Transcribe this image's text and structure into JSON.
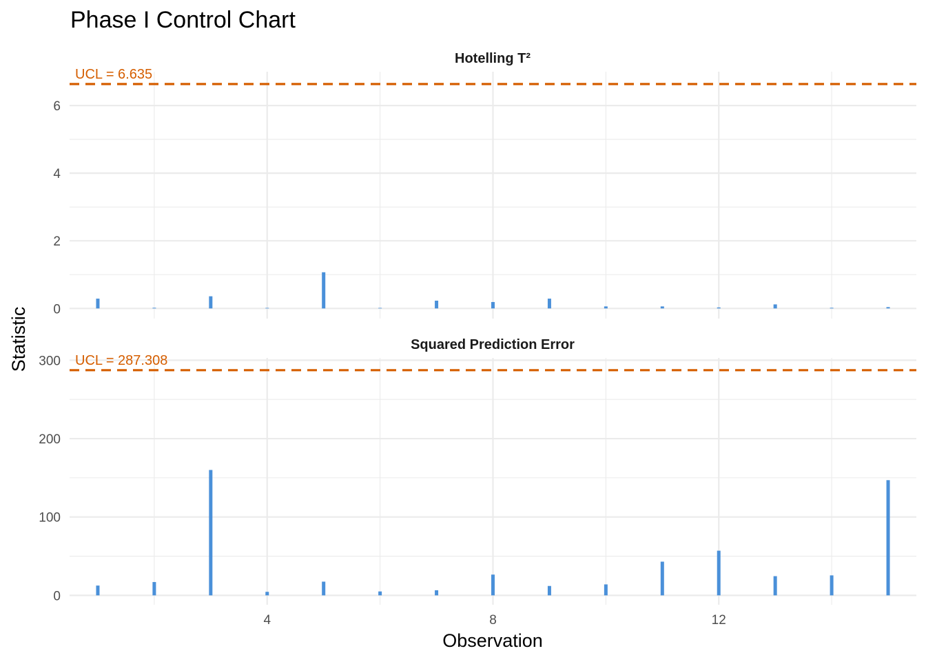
{
  "chart_data": {
    "type": "bar",
    "title": "Phase I Control Chart",
    "xlabel": "Observation",
    "ylabel": "Statistic",
    "x": [
      1,
      2,
      3,
      4,
      5,
      6,
      7,
      8,
      9,
      10,
      11,
      12,
      13,
      14,
      15
    ],
    "xlim": [
      0.5,
      15.5
    ],
    "x_ticks": [
      4,
      8,
      12
    ],
    "x_tick_labels": [
      "4",
      "8",
      "12"
    ],
    "grid": true,
    "colors": {
      "bar": "#4a90d9",
      "ucl": "#d55e00",
      "grid": "#ebebeb"
    },
    "panels": [
      {
        "name": "Hotelling T²",
        "values": [
          0.29,
          0.02,
          0.36,
          0.0,
          1.07,
          0.0,
          0.23,
          0.19,
          0.29,
          0.06,
          0.06,
          0.03,
          0.12,
          0.02,
          0.04
        ],
        "ylim": [
          -0.3,
          7.0
        ],
        "y_ticks": [
          0,
          2,
          4,
          6
        ],
        "ucl": 6.635,
        "ucl_label": "UCL = 6.635"
      },
      {
        "name": "Squared Prediction Error",
        "values": [
          12.5,
          17.0,
          160.0,
          4.5,
          17.5,
          5.0,
          6.5,
          26.5,
          12.0,
          14.0,
          43.0,
          57.0,
          24.5,
          25.5,
          147.0
        ],
        "ylim": [
          -12,
          303
        ],
        "y_ticks": [
          0,
          100,
          200,
          300
        ],
        "ucl": 287.308,
        "ucl_label": "UCL = 287.308"
      }
    ]
  }
}
